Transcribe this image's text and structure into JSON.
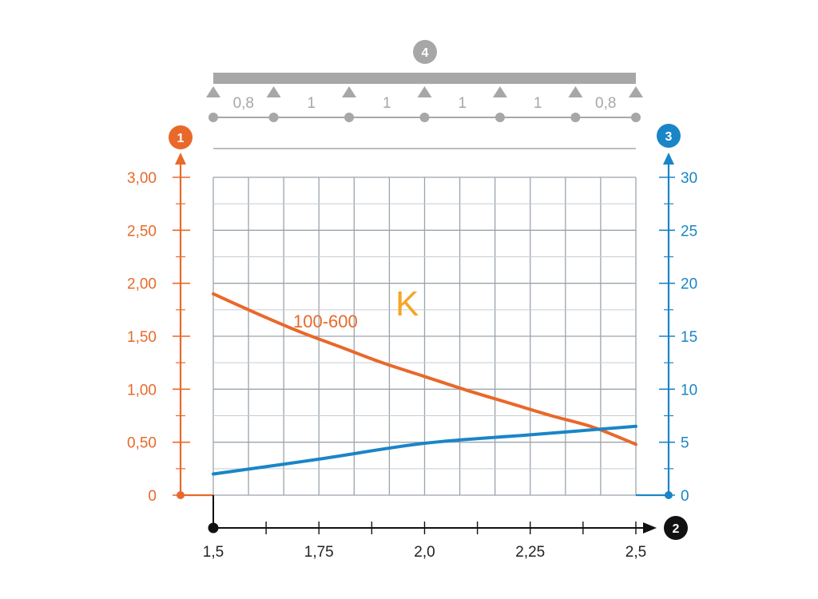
{
  "chart_data": {
    "type": "line",
    "x_axis": {
      "marker": "2",
      "range": [
        1.5,
        2.5
      ],
      "tick_labels": [
        {
          "value": 1.5,
          "label": "1,5"
        },
        {
          "value": 1.75,
          "label": "1,75"
        },
        {
          "value": 2.0,
          "label": "2,0"
        },
        {
          "value": 2.25,
          "label": "2,25"
        },
        {
          "value": 2.5,
          "label": "2,5"
        }
      ],
      "minor_tick_step": 0.125,
      "color": "#111111"
    },
    "y_left": {
      "marker": "1",
      "range": [
        0,
        3.0
      ],
      "tick_labels": [
        {
          "value": 0,
          "label": "0"
        },
        {
          "value": 0.5,
          "label": "0,50"
        },
        {
          "value": 1.0,
          "label": "1,00"
        },
        {
          "value": 1.5,
          "label": "1,50"
        },
        {
          "value": 2.0,
          "label": "2,00"
        },
        {
          "value": 2.5,
          "label": "2,50"
        },
        {
          "value": 3.0,
          "label": "3,00"
        }
      ],
      "color": "#e8692a"
    },
    "y_right": {
      "marker": "3",
      "range": [
        0,
        30
      ],
      "tick_labels": [
        {
          "value": 0,
          "label": "0"
        },
        {
          "value": 5,
          "label": "5"
        },
        {
          "value": 10,
          "label": "10"
        },
        {
          "value": 15,
          "label": "15"
        },
        {
          "value": 20,
          "label": "20"
        },
        {
          "value": 25,
          "label": "25"
        },
        {
          "value": 30,
          "label": "30"
        }
      ],
      "color": "#1a85c7"
    },
    "grid": true,
    "series": [
      {
        "name": "100-600",
        "axis": "left",
        "color": "#e8692a",
        "x": [
          1.5,
          1.6,
          1.7,
          1.8,
          1.9,
          2.0,
          2.1,
          2.2,
          2.3,
          2.4,
          2.5
        ],
        "y": [
          1.9,
          1.72,
          1.55,
          1.4,
          1.25,
          1.12,
          0.99,
          0.87,
          0.75,
          0.64,
          0.48
        ]
      },
      {
        "axis": "right",
        "color": "#1a85c7",
        "x": [
          1.5,
          1.75,
          2.0,
          2.25,
          2.5
        ],
        "y": [
          2.0,
          3.4,
          4.9,
          5.7,
          6.5
        ]
      }
    ],
    "annotations": [
      {
        "text": "K",
        "color": "#f5a623"
      }
    ],
    "beam_diagram": {
      "marker": "4",
      "span_labels": [
        "0,8",
        "1",
        "1",
        "1",
        "1",
        "0,8"
      ],
      "span_proportions": [
        0.8,
        1,
        1,
        1,
        1,
        0.8
      ],
      "color": "#a7a7a7"
    },
    "colors": {
      "grid": "#9aa4ad",
      "marker_left": "#e8692a",
      "marker_right": "#1a85c7",
      "marker_bottom": "#111111",
      "marker_beam": "#a7a7a7"
    }
  }
}
